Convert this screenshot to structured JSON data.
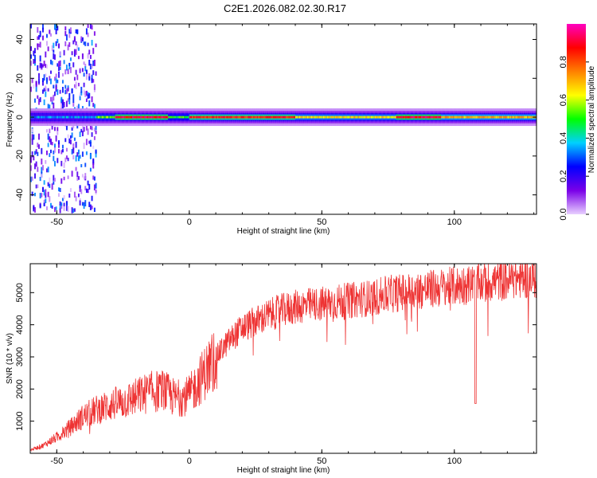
{
  "title": "C2E1.2026.082.02.30.R17",
  "chart_data": [
    {
      "type": "heatmap",
      "xlabel": "Height of straight line (km)",
      "ylabel": "Frequency (Hz)",
      "xlim": [
        -60,
        131
      ],
      "ylim": [
        -50,
        48
      ],
      "xticks": [
        "-50",
        "0",
        "50",
        "100"
      ],
      "yticks": [
        "-40",
        "-20",
        "0",
        "20",
        "40"
      ],
      "colorbar": {
        "label": "Normalized spectral amplitude",
        "range": [
          0,
          1
        ],
        "ticks": [
          "0.0",
          "0.2",
          "0.4",
          "0.6",
          "0.8"
        ],
        "colors": [
          "#e8d0ff",
          "#7a00e8",
          "#0000ff",
          "#00d0ff",
          "#00ff00",
          "#ffff00",
          "#ff8000",
          "#ff0000",
          "#ff00c0"
        ]
      },
      "ridge": {
        "frequency": 0,
        "segments": [
          {
            "x0": -60,
            "x1": -35,
            "amp": 0.35,
            "spread": 30
          },
          {
            "x0": -35,
            "x1": -28,
            "amp": 0.55,
            "spread": 3
          },
          {
            "x0": -28,
            "x1": -8,
            "amp": 0.9,
            "spread": 2
          },
          {
            "x0": -8,
            "x1": 0,
            "amp": 0.5,
            "spread": 2
          },
          {
            "x0": 0,
            "x1": 40,
            "amp": 0.85,
            "spread": 2
          },
          {
            "x0": 40,
            "x1": 78,
            "amp": 0.65,
            "spread": 2
          },
          {
            "x0": 78,
            "x1": 95,
            "amp": 0.9,
            "spread": 2
          },
          {
            "x0": 95,
            "x1": 131,
            "amp": 0.7,
            "spread": 2
          }
        ]
      }
    },
    {
      "type": "line",
      "xlabel": "Height of straight line (km)",
      "ylabel": "SNR (10 * v/v)",
      "xlim": [
        -60,
        131
      ],
      "ylim": [
        0,
        5900
      ],
      "xticks": [
        "-50",
        "0",
        "50",
        "100"
      ],
      "yticks": [
        "1000",
        "2000",
        "3000",
        "4000",
        "5000"
      ],
      "color": "#ee3333",
      "series": [
        {
          "x": [
            -60,
            -55,
            -50,
            -45,
            -40,
            -35,
            -30,
            -25,
            -20,
            -15,
            -10,
            -5,
            0,
            5,
            10,
            15,
            20,
            25,
            30,
            35,
            40,
            45,
            50,
            55,
            60,
            65,
            70,
            75,
            80,
            85,
            90,
            95,
            100,
            105,
            110,
            115,
            120,
            125,
            131
          ],
          "y": [
            100,
            250,
            500,
            800,
            1150,
            1350,
            1500,
            1600,
            1750,
            1900,
            1950,
            1700,
            1800,
            2400,
            3000,
            3500,
            3900,
            4100,
            4300,
            4450,
            4550,
            4600,
            4650,
            4700,
            4750,
            4800,
            4850,
            4950,
            5000,
            5050,
            5100,
            5150,
            5200,
            5250,
            5300,
            5350,
            5400,
            5450,
            5450
          ]
        }
      ],
      "annotations": [
        {
          "x": 108,
          "y": 1550,
          "note": "dip"
        }
      ]
    }
  ]
}
